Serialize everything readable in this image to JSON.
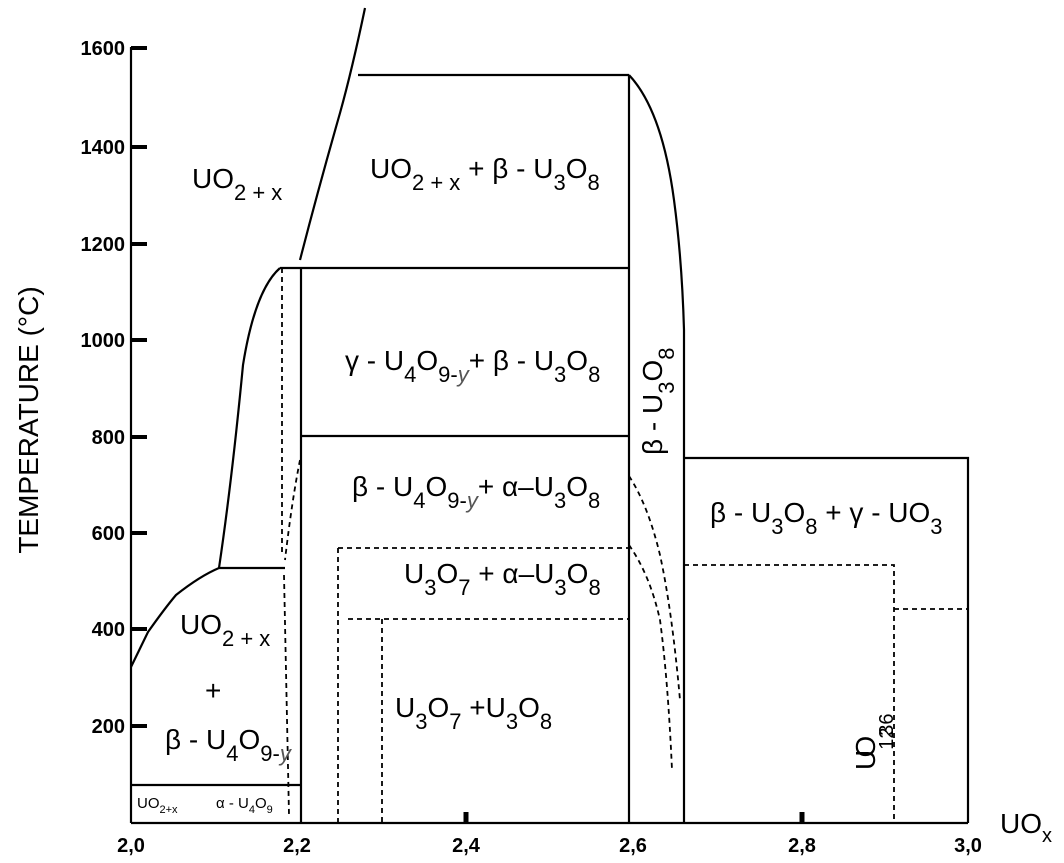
{
  "axes": {
    "y_title": "TEMPERATURE (°C)",
    "x_unit_main": "UO",
    "x_unit_sub": "x",
    "x_ticks": [
      "2,0",
      "2,2",
      "2,4",
      "2,6",
      "2,8",
      "3,0"
    ],
    "y_ticks": [
      "200",
      "400",
      "600",
      "800",
      "1000",
      "1200",
      "1400",
      "1600"
    ]
  },
  "regions": {
    "uo2x_high": {
      "main": "UO",
      "sub": "2 + x"
    },
    "uo2x_u3o8_top": {
      "p1": "UO",
      "s1": "2 + x",
      "p2": " +  β - U",
      "s2": "3",
      "p3": "O",
      "s3": "8"
    },
    "gamma_u4o9": {
      "p1": "γ - U",
      "s1": "4",
      "p2": "O",
      "s2": "9-",
      "p3": "y",
      "p4": "+  β - U",
      "s3": "3",
      "p5": "O",
      "s4": "8"
    },
    "beta_u4o9": {
      "p1": "β - U",
      "s1": "4",
      "p2": "O",
      "s2": "9-",
      "p3": "y",
      "p4": "+ α–U",
      "s3": "3",
      "p5": "O",
      "s4": "8"
    },
    "u3o7_alpha": {
      "p1": "U",
      "s1": "3",
      "p2": "O",
      "s2": "7",
      "p3": " + α–U",
      "s3": "3",
      "p4": "O",
      "s4": "8"
    },
    "u3o7_u3o8": {
      "p1": "U",
      "s1": "3",
      "p2": "O",
      "s2": "7",
      "p3": " +U",
      "s3": "3",
      "p4": "O",
      "s4": "8"
    },
    "beta_u3o8_narrow": {
      "p1": "β - U",
      "s1": "3",
      "p2": "O",
      "s2": "8"
    },
    "beta_u3o8_gamma_uo3": {
      "p1": "β - U",
      "s1": "3",
      "p2": "O",
      "s2": "8",
      "p3": "  +  γ - UO",
      "s3": "3"
    },
    "u12o36": {
      "p1": "U",
      "p2": "O",
      "s1": "12",
      "s2": "36"
    },
    "uo2x_low": {
      "main": "UO",
      "sub": "2 + x"
    },
    "plus_sign": "+",
    "beta_u4o9_low": {
      "p1": "β - U",
      "s1": "4",
      "p2": "O",
      "s2": "9-",
      "p3": "y"
    },
    "uo2x_tiny": {
      "main": "UO",
      "sub": "2+x"
    },
    "alpha_u4o9_tiny": {
      "p1": "α - U",
      "s1": "4",
      "p2": "O",
      "s2": "9"
    }
  }
}
